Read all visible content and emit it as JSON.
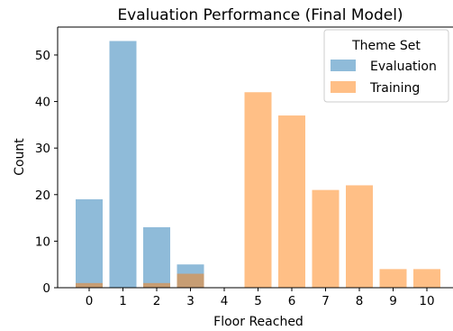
{
  "chart_data": {
    "type": "bar",
    "title": "Evaluation Performance (Final Model)",
    "xlabel": "Floor Reached",
    "ylabel": "Count",
    "categories": [
      "0",
      "1",
      "2",
      "3",
      "4",
      "5",
      "6",
      "7",
      "8",
      "9",
      "10"
    ],
    "series": [
      {
        "name": "Evaluation",
        "color": "#1f77b4",
        "values": [
          19,
          53,
          13,
          5,
          0,
          0,
          0,
          0,
          0,
          0,
          0
        ]
      },
      {
        "name": "Training",
        "color": "#ff7f0e",
        "values": [
          1,
          0,
          1,
          3,
          0,
          42,
          37,
          21,
          22,
          4,
          4
        ]
      }
    ],
    "bar_alpha": 0.5,
    "ylim": [
      0,
      56
    ],
    "yticks": [
      "0",
      "10",
      "20",
      "30",
      "40",
      "50"
    ],
    "grid": false,
    "legend": {
      "title": "Theme Set",
      "placement": "top-right"
    }
  }
}
